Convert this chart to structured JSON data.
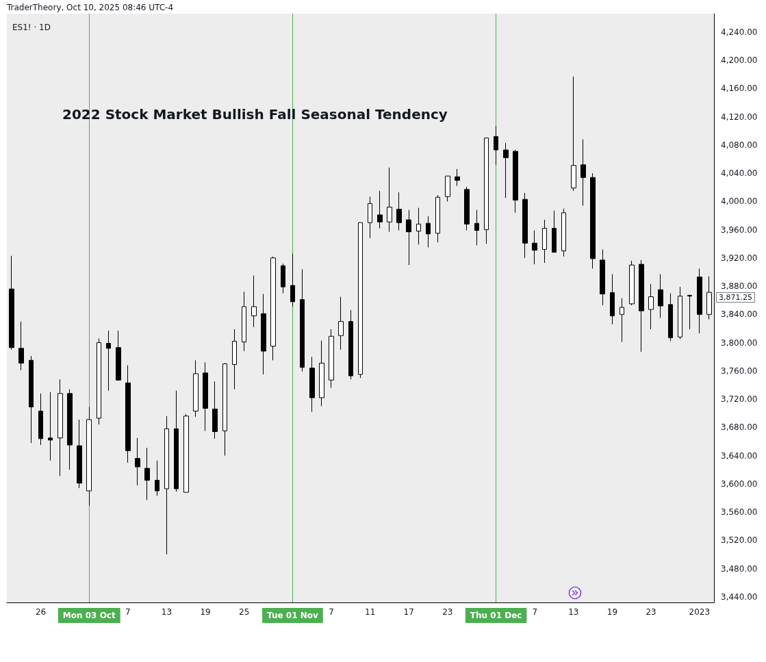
{
  "chart_data": {
    "type": "candlestick",
    "title": "2022 Stock Market Bullish Fall Seasonal Tendency",
    "annotations": [
      "TraderTheory, Oct 10, 2025 08:46 UTC-4",
      "ES1! · 1D",
      "3,871.25"
    ],
    "categories": [
      null,
      null,
      null,
      "26",
      null,
      null,
      null,
      null,
      "Mon 03 Oct",
      null,
      null,
      null,
      "7",
      null,
      null,
      null,
      "13",
      null,
      null,
      null,
      "19",
      null,
      null,
      null,
      "25",
      null,
      null,
      null,
      null,
      "Tue 01 Nov",
      null,
      null,
      null,
      "7",
      null,
      null,
      null,
      "11",
      null,
      null,
      null,
      "17",
      null,
      null,
      null,
      "23",
      null,
      null,
      null,
      null,
      "Thu 01 Dec",
      null,
      null,
      null,
      "7",
      null,
      null,
      null,
      "13",
      null,
      null,
      null,
      "19",
      null,
      null,
      null,
      "23",
      null,
      null,
      null,
      null,
      "2023",
      null
    ],
    "color": "#000000",
    "ohlc": [
      [
        3876,
        3923,
        3790,
        3793
      ],
      [
        3792,
        3830,
        3761,
        3771
      ],
      [
        3775,
        3781,
        3658,
        3709
      ],
      [
        3703,
        3728,
        3655,
        3664
      ],
      [
        3665,
        3730,
        3633,
        3662
      ],
      [
        3665,
        3748,
        3611,
        3728
      ],
      [
        3728,
        3734,
        3620,
        3655
      ],
      [
        3654,
        3691,
        3594,
        3601
      ],
      [
        3590,
        3709,
        3569,
        3691
      ],
      [
        3693,
        3806,
        3684,
        3800
      ],
      [
        3799,
        3817,
        3732,
        3792
      ],
      [
        3793,
        3817,
        3746,
        3747
      ],
      [
        3743,
        3768,
        3630,
        3647
      ],
      [
        3636,
        3665,
        3598,
        3624
      ],
      [
        3622,
        3651,
        3577,
        3605
      ],
      [
        3605,
        3633,
        3583,
        3590
      ],
      [
        3593,
        3696,
        3500,
        3678
      ],
      [
        3678,
        3732,
        3589,
        3593
      ],
      [
        3588,
        3699,
        3588,
        3696
      ],
      [
        3703,
        3775,
        3695,
        3756
      ],
      [
        3757,
        3772,
        3675,
        3707
      ],
      [
        3706,
        3745,
        3664,
        3674
      ],
      [
        3675,
        3771,
        3640,
        3770
      ],
      [
        3769,
        3819,
        3734,
        3802
      ],
      [
        3801,
        3872,
        3788,
        3851
      ],
      [
        3838,
        3895,
        3822,
        3851
      ],
      [
        3841,
        3869,
        3755,
        3788
      ],
      [
        3795,
        3922,
        3775,
        3920
      ],
      [
        3909,
        3912,
        3870,
        3879
      ],
      [
        3881,
        3926,
        3851,
        3858
      ],
      [
        3861,
        3904,
        3759,
        3765
      ],
      [
        3764,
        3780,
        3702,
        3722
      ],
      [
        3722,
        3803,
        3710,
        3771
      ],
      [
        3747,
        3819,
        3736,
        3809
      ],
      [
        3810,
        3865,
        3790,
        3830
      ],
      [
        3830,
        3846,
        3748,
        3753
      ],
      [
        3755,
        3970,
        3750,
        3970
      ],
      [
        3970,
        4007,
        3948,
        3997
      ],
      [
        3981,
        4015,
        3962,
        3971
      ],
      [
        3971,
        4048,
        3957,
        3992
      ],
      [
        3989,
        4013,
        3959,
        3970
      ],
      [
        3974,
        3988,
        3910,
        3957
      ],
      [
        3958,
        3991,
        3939,
        3968
      ],
      [
        3969,
        3979,
        3935,
        3954
      ],
      [
        3955,
        4009,
        3942,
        4006
      ],
      [
        4007,
        4036,
        4000,
        4036
      ],
      [
        4035,
        4046,
        4022,
        4030
      ],
      [
        4017,
        4021,
        3959,
        3968
      ],
      [
        3969,
        3988,
        3938,
        3959
      ],
      [
        3960,
        4090,
        3940,
        4090
      ],
      [
        4092,
        4107,
        4052,
        4073
      ],
      [
        4073,
        4083,
        4005,
        4062
      ],
      [
        4071,
        4073,
        3984,
        4002
      ],
      [
        4003,
        4012,
        3920,
        3941
      ],
      [
        3941,
        3959,
        3911,
        3931
      ],
      [
        3932,
        3974,
        3913,
        3962
      ],
      [
        3962,
        3987,
        3928,
        3928
      ],
      [
        3930,
        3990,
        3922,
        3984
      ],
      [
        4019,
        4177,
        4015,
        4051
      ],
      [
        4052,
        4088,
        3994,
        4034
      ],
      [
        4034,
        4040,
        3905,
        3919
      ],
      [
        3917,
        3932,
        3853,
        3869
      ],
      [
        3871,
        3897,
        3826,
        3838
      ],
      [
        3840,
        3863,
        3801,
        3850
      ],
      [
        3855,
        3916,
        3853,
        3910
      ],
      [
        3911,
        3917,
        3787,
        3845
      ],
      [
        3847,
        3883,
        3819,
        3865
      ],
      [
        3875,
        3897,
        3835,
        3852
      ],
      [
        3854,
        3870,
        3802,
        3807
      ],
      [
        3808,
        3879,
        3805,
        3866
      ],
      [
        3867,
        3868,
        3819,
        3866
      ],
      [
        3893,
        3905,
        3813,
        3840
      ],
      [
        3840,
        3894,
        3833,
        3871.25
      ]
    ],
    "ylim": [
      3432,
      4266
    ],
    "yticks": [
      {
        "value": 3440,
        "label": "3,440.00"
      },
      {
        "value": 3480,
        "label": "3,480.00"
      },
      {
        "value": 3520,
        "label": "3,520.00"
      },
      {
        "value": 3560,
        "label": "3,560.00"
      },
      {
        "value": 3600,
        "label": "3,600.00"
      },
      {
        "value": 3640,
        "label": "3,640.00"
      },
      {
        "value": 3680,
        "label": "3,680.00"
      },
      {
        "value": 3720,
        "label": "3,720.00"
      },
      {
        "value": 3760,
        "label": "3,760.00"
      },
      {
        "value": 3800,
        "label": "3,800.00"
      },
      {
        "value": 3840,
        "label": "3,840.00"
      },
      {
        "value": 3880,
        "label": "3,880.00"
      },
      {
        "value": 3920,
        "label": "3,920.00"
      },
      {
        "value": 3960,
        "label": "3,960.00"
      },
      {
        "value": 4000,
        "label": "4,000.00"
      },
      {
        "value": 4040,
        "label": "4,040.00"
      },
      {
        "value": 4080,
        "label": "4,080.00"
      },
      {
        "value": 4120,
        "label": "4,120.00"
      },
      {
        "value": 4160,
        "label": "4,160.00"
      },
      {
        "value": 4200,
        "label": "4,200.00"
      },
      {
        "value": 4240,
        "label": "4,240.00"
      }
    ],
    "ref_lines": [
      {
        "axis": "x",
        "value": "Mon 03 Oct",
        "color": "#4caf50"
      },
      {
        "axis": "x",
        "value": "Tue 01 Nov",
        "color": "#4caf50"
      },
      {
        "axis": "x",
        "value": "Thu 01 Dec",
        "color": "#4caf50"
      }
    ],
    "grid": false
  }
}
